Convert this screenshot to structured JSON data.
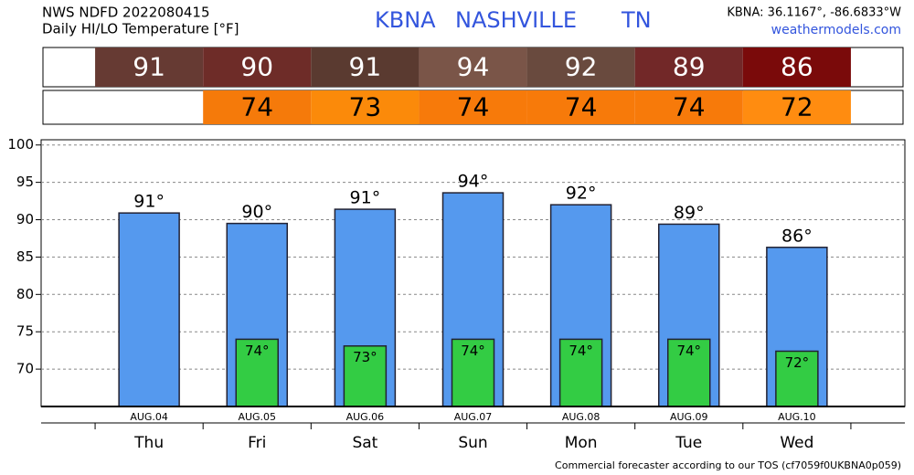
{
  "header": {
    "source": "NWS NDFD 2022080415",
    "subtitle": "Daily HI/LO Temperature [°F]",
    "station": "KBNA",
    "city": "NASHVILLE",
    "state": "TN",
    "coords": "KBNA: 36.1167°, -86.6833°W",
    "site": "weathermodels.com",
    "footer": "Commercial forecaster according to our TOS (cf7059f0UKBNA0p059)"
  },
  "hi_strip": {
    "values": [
      91,
      90,
      91,
      94,
      92,
      89,
      86
    ],
    "colors": [
      "#663a33",
      "#6e2c28",
      "#5a3a30",
      "#7a5548",
      "#694a3e",
      "#722828",
      "#7a0a0a"
    ]
  },
  "lo_strip": {
    "values": [
      null,
      74,
      73,
      74,
      74,
      74,
      72
    ],
    "colors": [
      null,
      "#f57a0a",
      "#fb8a0a",
      "#f77a0a",
      "#f77a0a",
      "#f77a0a",
      "#ff8c10"
    ]
  },
  "chart_data": {
    "type": "bar",
    "categories": [
      "AUG.04",
      "AUG.05",
      "AUG.06",
      "AUG.07",
      "AUG.08",
      "AUG.09",
      "AUG.10"
    ],
    "days": [
      "Thu",
      "Fri",
      "Sat",
      "Sun",
      "Mon",
      "Tue",
      "Wed"
    ],
    "series": [
      {
        "color": "#5599ee",
        "values": [
          90.9,
          89.5,
          91.4,
          93.6,
          92.0,
          89.4,
          86.3
        ],
        "value_labels": [
          "91°",
          "90°",
          "91°",
          "94°",
          "92°",
          "89°",
          "86°"
        ]
      },
      {
        "color": "#33cc44",
        "values": [
          null,
          74,
          73.1,
          74,
          74,
          74,
          72.4
        ],
        "value_labels": [
          null,
          "74°",
          "73°",
          "74°",
          "74°",
          "74°",
          "72°"
        ]
      }
    ],
    "ylim": [
      65,
      100.7
    ],
    "yticks": [
      70,
      75,
      80,
      85,
      90,
      95,
      100
    ],
    "grid": true
  }
}
